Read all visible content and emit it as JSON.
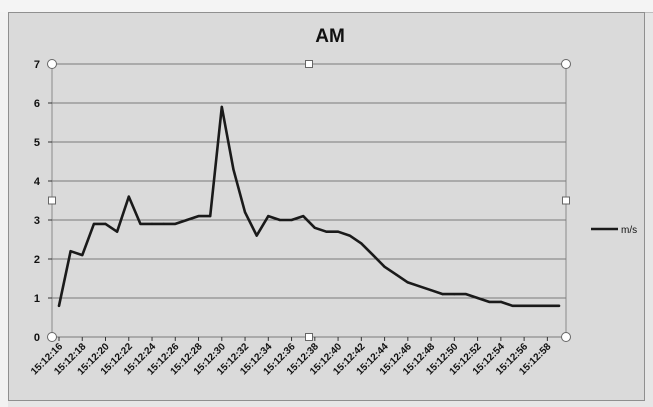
{
  "chart_data": {
    "type": "line",
    "title": "AM",
    "xlabel": "",
    "ylabel": "",
    "ylim": [
      0,
      7
    ],
    "yticks": [
      "0",
      "1",
      "2",
      "3",
      "4",
      "5",
      "6",
      "7"
    ],
    "grid": true,
    "legend_position": "right",
    "x_tick_labels": [
      "15:12:16",
      "15:12:18",
      "15:12:20",
      "15:12:22",
      "15:12:24",
      "15:12:26",
      "15:12:28",
      "15:12:30",
      "15:12:32",
      "15:12:34",
      "15:12:36",
      "15:12:38",
      "15:12:40",
      "15:12:42",
      "15:12:44",
      "15:12:46",
      "15:12:48",
      "15:12:50",
      "15:12:52",
      "15:12:54",
      "15:12:56",
      "15:12:58"
    ],
    "series": [
      {
        "name": "m/s",
        "color": "#1a1a1a",
        "values": [
          0.8,
          2.2,
          2.1,
          2.9,
          2.9,
          2.7,
          3.6,
          2.9,
          2.9,
          2.9,
          2.9,
          3.0,
          3.1,
          3.1,
          5.9,
          4.3,
          3.2,
          2.6,
          3.1,
          3.0,
          3.0,
          3.1,
          2.8,
          2.7,
          2.7,
          2.6,
          2.4,
          2.1,
          1.8,
          1.6,
          1.4,
          1.3,
          1.2,
          1.1,
          1.1,
          1.1,
          1.0,
          0.9,
          0.9,
          0.8,
          0.8,
          0.8,
          0.8,
          0.8
        ]
      }
    ]
  }
}
